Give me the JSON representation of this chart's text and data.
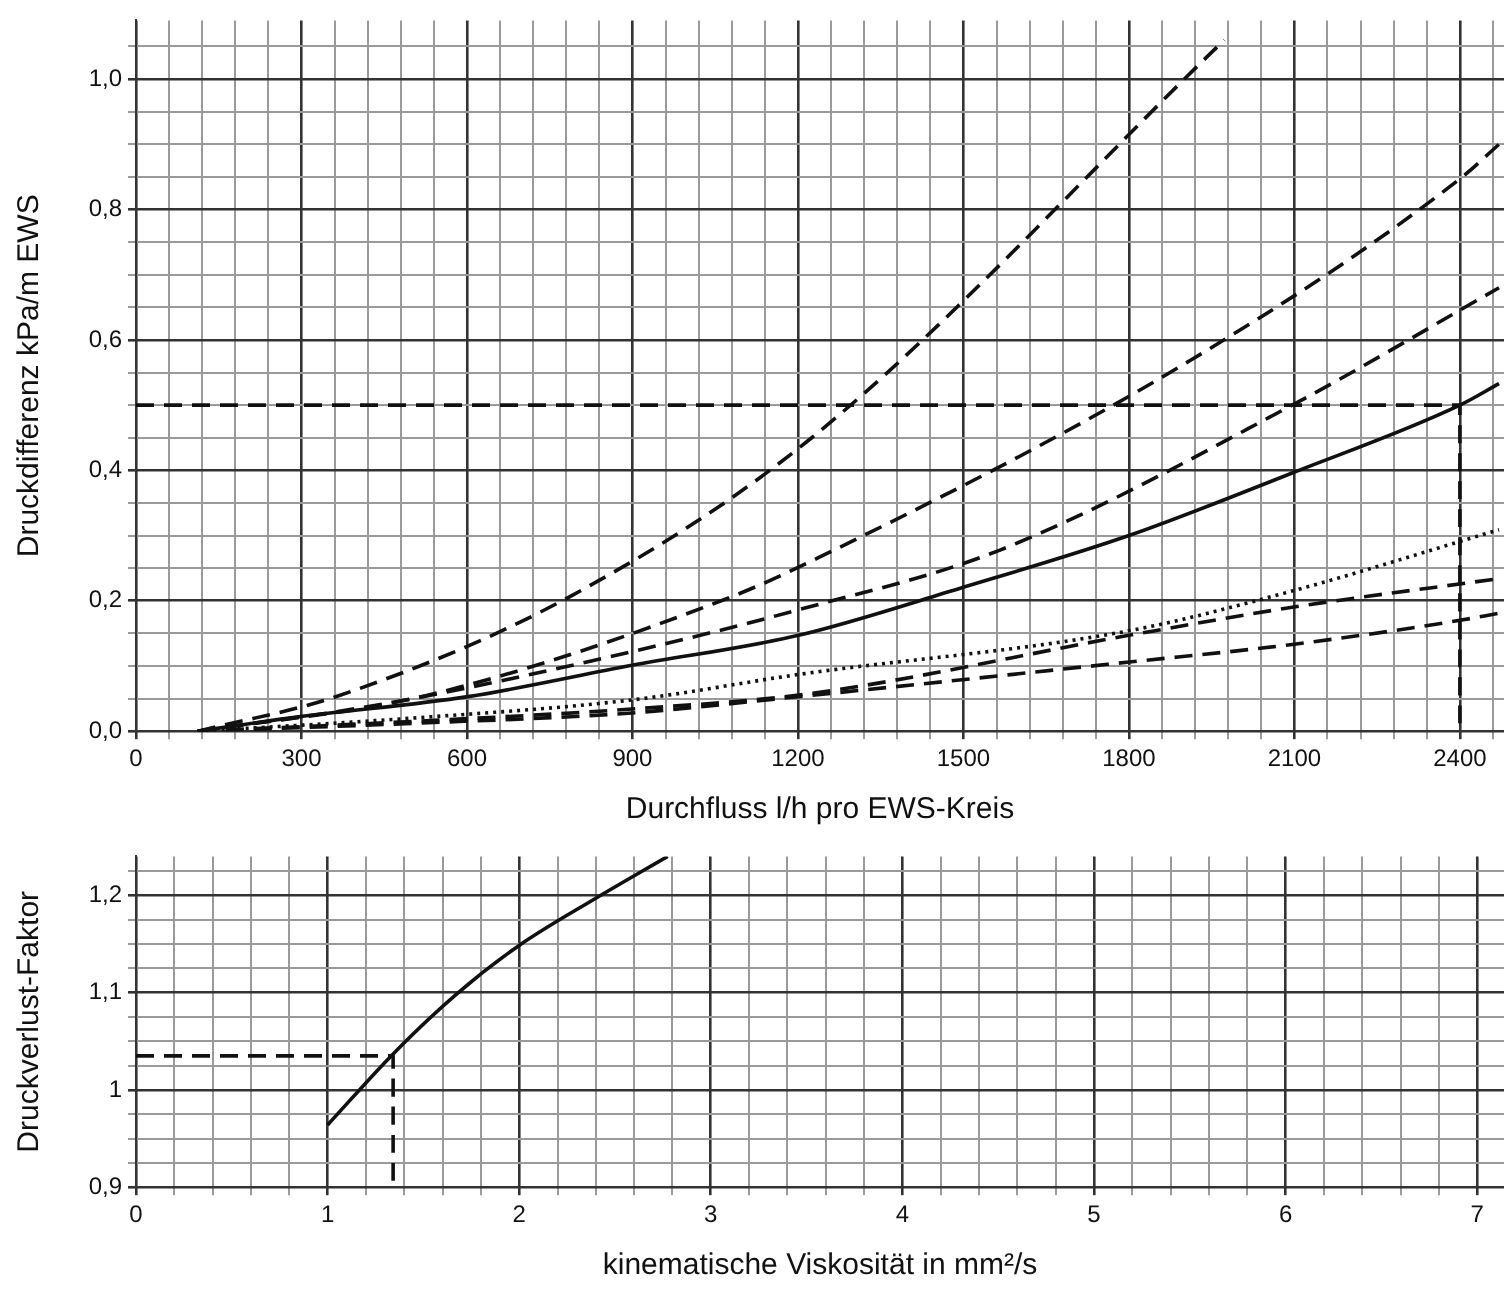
{
  "chart_data": [
    {
      "type": "line",
      "xlabel": "Durchfluss l/h pro EWS-Kreis",
      "ylabel": "Druckdifferenz kPa/m EWS",
      "grid": true,
      "marker": "none",
      "xlim": [
        0,
        2480
      ],
      "ylim": [
        0,
        1.09
      ],
      "xticks": [
        0,
        {
          "value": 60,
          "label": null
        },
        {
          "value": 120,
          "label": null
        },
        {
          "value": 180,
          "label": null
        },
        {
          "value": 240,
          "label": null
        },
        300,
        {
          "value": 360,
          "label": null
        },
        {
          "value": 420,
          "label": null
        },
        {
          "value": 480,
          "label": null
        },
        {
          "value": 540,
          "label": null
        },
        600,
        {
          "value": 660,
          "label": null
        },
        {
          "value": 720,
          "label": null
        },
        {
          "value": 780,
          "label": null
        },
        {
          "value": 840,
          "label": null
        },
        900,
        {
          "value": 960,
          "label": null
        },
        {
          "value": 1020,
          "label": null
        },
        {
          "value": 1080,
          "label": null
        },
        {
          "value": 1140,
          "label": null
        },
        1200,
        {
          "value": 1260,
          "label": null
        },
        {
          "value": 1320,
          "label": null
        },
        {
          "value": 1380,
          "label": null
        },
        {
          "value": 1440,
          "label": null
        },
        1500,
        {
          "value": 1560,
          "label": null
        },
        {
          "value": 1620,
          "label": null
        },
        {
          "value": 1680,
          "label": null
        },
        {
          "value": 1740,
          "label": null
        },
        1800,
        {
          "value": 1860,
          "label": null
        },
        {
          "value": 1920,
          "label": null
        },
        {
          "value": 1980,
          "label": null
        },
        {
          "value": 2040,
          "label": null
        },
        2100,
        {
          "value": 2160,
          "label": null
        },
        {
          "value": 2220,
          "label": null
        },
        {
          "value": 2280,
          "label": null
        },
        {
          "value": 2340,
          "label": null
        },
        2400,
        {
          "value": 2460,
          "label": null
        }
      ],
      "yticks": [
        {
          "value": 0,
          "label": "0,0"
        },
        {
          "value": 0.05,
          "label": null
        },
        {
          "value": 0.1,
          "label": null
        },
        {
          "value": 0.15,
          "label": null
        },
        {
          "value": 0.2,
          "label": "0,2"
        },
        {
          "value": 0.25,
          "label": null
        },
        {
          "value": 0.3,
          "label": null
        },
        {
          "value": 0.35,
          "label": null
        },
        {
          "value": 0.4,
          "label": "0,4"
        },
        {
          "value": 0.45,
          "label": null
        },
        {
          "value": 0.5,
          "label": null
        },
        {
          "value": 0.55,
          "label": null
        },
        {
          "value": 0.6,
          "label": "0,6"
        },
        {
          "value": 0.65,
          "label": null
        },
        {
          "value": 0.7,
          "label": null
        },
        {
          "value": 0.75,
          "label": null
        },
        {
          "value": 0.8,
          "label": "0,8"
        },
        {
          "value": 0.85,
          "label": null
        },
        {
          "value": 0.9,
          "label": null
        },
        {
          "value": 0.95,
          "label": null
        },
        {
          "value": 1.0,
          "label": "1,0"
        },
        {
          "value": 1.05,
          "label": null
        }
      ],
      "series": [
        {
          "color": "#111111",
          "line_style": "dashed",
          "x": [
            112,
            366,
            790,
            1225,
            1973
          ],
          "values": [
            0,
            0.054,
            0.208,
            0.45,
            1.06
          ]
        },
        {
          "color": "#111111",
          "line_style": "dashed",
          "x": [
            112,
            523,
            1067,
            1237,
            1914,
            2400,
            2471
          ],
          "values": [
            0,
            0.054,
            0.202,
            0.266,
            0.57,
            0.847,
            0.9
          ]
        },
        {
          "color": "#111111",
          "line_style": "dashed",
          "x": [
            112,
            450,
            899,
            1200,
            1564,
            2096,
            2471
          ],
          "values": [
            0,
            0.042,
            0.122,
            0.186,
            0.277,
            0.5,
            0.68
          ]
        },
        {
          "color": "#111111",
          "line_style": "solid",
          "x": [
            112,
            294,
            602,
            899,
            1201,
            1497,
            1800,
            2096,
            2400,
            2471
          ],
          "values": [
            0,
            0.022,
            0.053,
            0.101,
            0.147,
            0.22,
            0.3,
            0.396,
            0.5,
            0.533
          ]
        },
        {
          "color": "#111111",
          "line_style": "dotted",
          "x": [
            112,
            500,
            899,
            1201,
            1800,
            2096,
            2471
          ],
          "values": [
            0,
            0.02,
            0.048,
            0.087,
            0.154,
            0.215,
            0.309
          ]
        },
        {
          "color": "#111111",
          "line_style": "dashed",
          "x": [
            112,
            500,
            899,
            1225,
            1800,
            2096,
            2471
          ],
          "values": [
            0,
            0.015,
            0.034,
            0.058,
            0.147,
            0.19,
            0.234
          ]
        },
        {
          "color": "#111111",
          "line_style": "dashed",
          "x": [
            112,
            500,
            899,
            1201,
            1800,
            2096,
            2400,
            2471
          ],
          "values": [
            0,
            0.012,
            0.028,
            0.053,
            0.106,
            0.133,
            0.17,
            0.181
          ]
        },
        {
          "color": "#111111",
          "line_style": "dashed",
          "x": [
            0,
            2400,
            2400
          ],
          "values": [
            0.5,
            0.5,
            0
          ]
        }
      ]
    },
    {
      "type": "line",
      "xlabel": "kinematische Viskosität in mm²/s",
      "ylabel": "Druckverlust-Faktor",
      "grid": true,
      "marker": "none",
      "xlim": [
        0,
        7.14
      ],
      "ylim": [
        0.9,
        1.24
      ],
      "xticks": [
        0,
        {
          "value": 0.2,
          "label": null
        },
        {
          "value": 0.4,
          "label": null
        },
        {
          "value": 0.6,
          "label": null
        },
        {
          "value": 0.8,
          "label": null
        },
        1,
        {
          "value": 1.2,
          "label": null
        },
        {
          "value": 1.4,
          "label": null
        },
        {
          "value": 1.6,
          "label": null
        },
        {
          "value": 1.8,
          "label": null
        },
        2,
        {
          "value": 2.2,
          "label": null
        },
        {
          "value": 2.4,
          "label": null
        },
        {
          "value": 2.6,
          "label": null
        },
        {
          "value": 2.8,
          "label": null
        },
        3,
        {
          "value": 3.2,
          "label": null
        },
        {
          "value": 3.4,
          "label": null
        },
        {
          "value": 3.6,
          "label": null
        },
        {
          "value": 3.8,
          "label": null
        },
        4,
        {
          "value": 4.2,
          "label": null
        },
        {
          "value": 4.4,
          "label": null
        },
        {
          "value": 4.6,
          "label": null
        },
        {
          "value": 4.8,
          "label": null
        },
        5,
        {
          "value": 5.2,
          "label": null
        },
        {
          "value": 5.4,
          "label": null
        },
        {
          "value": 5.6,
          "label": null
        },
        {
          "value": 5.8,
          "label": null
        },
        6,
        {
          "value": 6.2,
          "label": null
        },
        {
          "value": 6.4,
          "label": null
        },
        {
          "value": 6.6,
          "label": null
        },
        {
          "value": 6.8,
          "label": null
        },
        7
      ],
      "yticks": [
        {
          "value": 0.9,
          "label": "0,9"
        },
        {
          "value": 0.925,
          "label": null
        },
        {
          "value": 0.95,
          "label": null
        },
        {
          "value": 0.975,
          "label": null
        },
        {
          "value": 1.0,
          "label": "1"
        },
        {
          "value": 1.025,
          "label": null
        },
        {
          "value": 1.05,
          "label": null
        },
        {
          "value": 1.075,
          "label": null
        },
        {
          "value": 1.1,
          "label": "1,1"
        },
        {
          "value": 1.125,
          "label": null
        },
        {
          "value": 1.15,
          "label": null
        },
        {
          "value": 1.175,
          "label": null
        },
        {
          "value": 1.2,
          "label": "1,2"
        },
        {
          "value": 1.225,
          "label": null
        }
      ],
      "series": [
        {
          "color": "#111111",
          "line_style": "solid",
          "x": [
            1,
            1.342,
            1.67,
            1.996,
            2.4,
            2.775
          ],
          "values": [
            0.964,
            1.037,
            1.098,
            1.148,
            1.197,
            1.24
          ]
        },
        {
          "color": "#111111",
          "line_style": "dashed",
          "x": [
            0,
            1.342,
            1.342
          ],
          "values": [
            1.035,
            1.035,
            0.9
          ]
        }
      ]
    }
  ]
}
